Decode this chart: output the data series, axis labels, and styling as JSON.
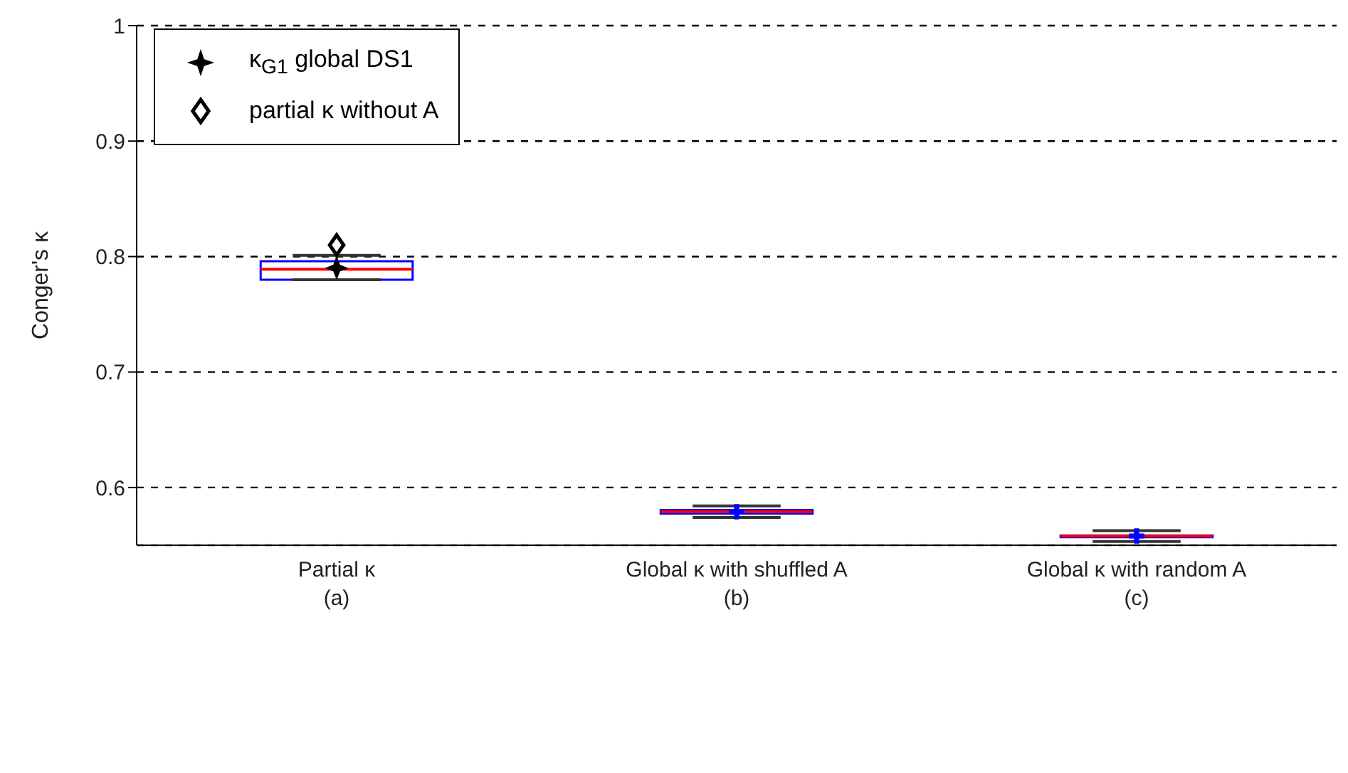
{
  "chart_data": {
    "type": "box",
    "ylabel": "Conger's κ",
    "categories": [
      "Partial κ\n(a)",
      "Global κ with shuffled A\n(b)",
      "Global κ with random A\n(c)"
    ],
    "ylim": [
      0.55,
      1
    ],
    "yticks": [
      0.6,
      0.7,
      0.8,
      0.9,
      1
    ],
    "grid": "y",
    "legend": "top left",
    "series": [
      {
        "color": "#0000ff",
        "boxes": [
          {
            "low": 0.78,
            "q1": 0.78,
            "median": 0.789,
            "q3": 0.796,
            "high": 0.801
          },
          {
            "low": 0.574,
            "q1": 0.5775,
            "median": 0.579,
            "q3": 0.5805,
            "high": 0.584,
            "mean": 0.579
          },
          {
            "low": 0.5532,
            "q1": 0.557,
            "median": 0.558,
            "q3": 0.5585,
            "high": 0.5627,
            "mean": 0.558
          }
        ]
      },
      {
        "type": "scatter",
        "name": "κ$_{G1}$ global DS1",
        "color": "#000000",
        "marker": "cross",
        "x": [
          "Partial κ\n(a)"
        ],
        "values": [
          0.79
        ]
      },
      {
        "type": "scatter",
        "name": "partial κ without A",
        "color": "#000000",
        "marker": "diamond",
        "x": [
          "Partial κ\n(a)"
        ],
        "values": [
          0.81
        ]
      }
    ]
  }
}
